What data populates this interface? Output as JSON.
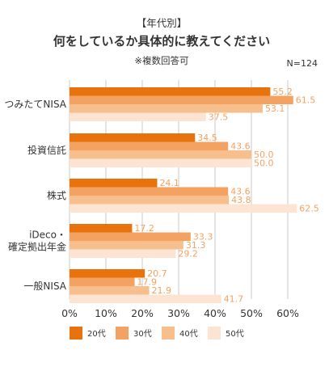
{
  "header": {
    "category_tag": "【年代別】",
    "title": "何をしているか具体的に教えてください",
    "subtitle": "※複数回答可",
    "sample_size": "N=124"
  },
  "colors": {
    "series": [
      "#E8730C",
      "#F4A261",
      "#F7BF8E",
      "#FCE3D2"
    ],
    "label_text": "#F4A261",
    "grid": "#c8c8c8",
    "axis_text": "#333333"
  },
  "chart_data": {
    "type": "bar",
    "orientation": "horizontal",
    "title": "何をしているか具体的に教えてください",
    "categories": [
      "つみたてNISA",
      "投資信託",
      "株式",
      "iDeco・確定拠出年金",
      "一般NISA"
    ],
    "category_lines": [
      [
        "つみたてNISA"
      ],
      [
        "投資信託"
      ],
      [
        "株式"
      ],
      [
        "iDeco・",
        "確定拠出年金"
      ],
      [
        "一般NISA"
      ]
    ],
    "series": [
      {
        "name": "20代",
        "values": [
          55.2,
          34.5,
          24.1,
          17.2,
          20.7
        ]
      },
      {
        "name": "30代",
        "values": [
          61.5,
          43.6,
          43.6,
          33.3,
          17.9
        ]
      },
      {
        "name": "40代",
        "values": [
          53.1,
          50.0,
          43.8,
          31.3,
          21.9
        ]
      },
      {
        "name": "50代",
        "values": [
          37.5,
          50.0,
          62.5,
          29.2,
          41.7
        ]
      }
    ],
    "xlim": [
      0,
      60
    ],
    "x_ticks": [
      "0%",
      "10%",
      "20%",
      "30%",
      "40%",
      "50%",
      "60%"
    ],
    "grid": true,
    "legend_position": "bottom-left"
  }
}
